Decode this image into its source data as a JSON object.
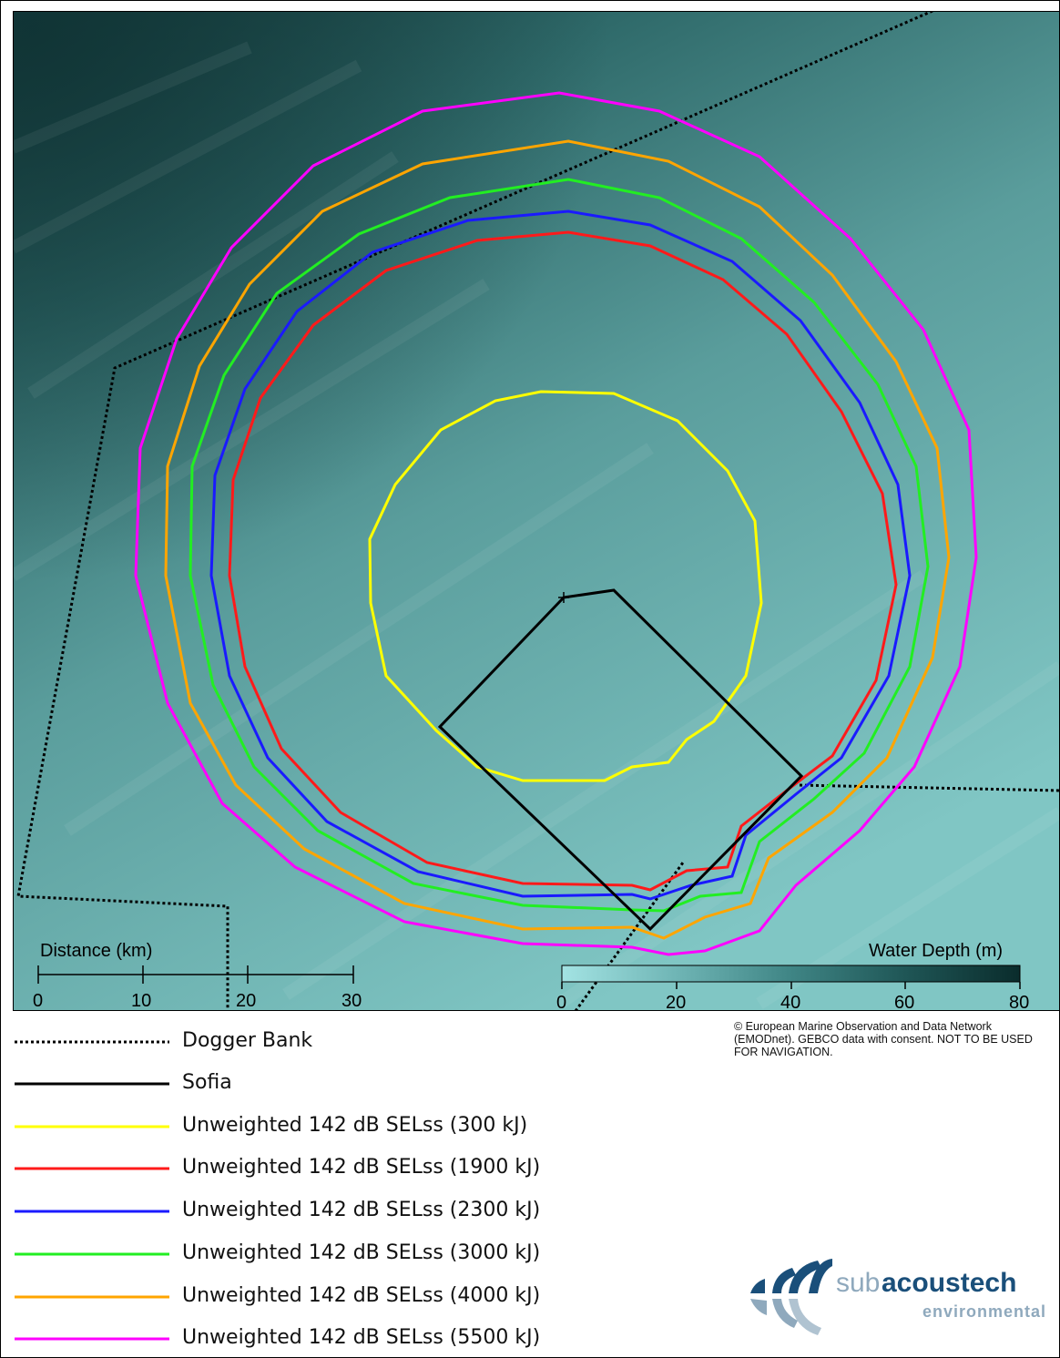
{
  "map": {
    "scale_bar": {
      "title": "Distance (km)",
      "ticks": [
        "0",
        "10",
        "20",
        "30"
      ]
    },
    "depth_bar": {
      "title": "Water Depth (m)",
      "ticks": [
        "0",
        "20",
        "40",
        "60",
        "80"
      ],
      "colors": [
        "#9fe0e0",
        "#6fb8b8",
        "#3f8888",
        "#1f5858",
        "#0b3030"
      ]
    },
    "colors": {
      "sea_light": "#7ec4c2",
      "sea_mid": "#5a9d9c",
      "sea_dark": "#173f40"
    }
  },
  "legend": [
    {
      "label": "Dogger Bank",
      "color": "#000000",
      "style": "dotted"
    },
    {
      "label": "Sofia",
      "color": "#000000",
      "style": "solid"
    },
    {
      "label": "Unweighted 142 dB SELss (300 kJ)",
      "color": "#ffff00",
      "style": "solid"
    },
    {
      "label": "Unweighted 142 dB SELss (1900 kJ)",
      "color": "#ff1a1a",
      "style": "solid"
    },
    {
      "label": "Unweighted 142 dB SELss (2300 kJ)",
      "color": "#1a1aff",
      "style": "solid"
    },
    {
      "label": "Unweighted 142 dB SELss (3000 kJ)",
      "color": "#22ee22",
      "style": "solid"
    },
    {
      "label": "Unweighted 142 dB SELss (4000 kJ)",
      "color": "#ffa500",
      "style": "solid"
    },
    {
      "label": "Unweighted 142 dB SELss (5500 kJ)",
      "color": "#ff00ff",
      "style": "solid"
    }
  ],
  "credit": "© European Marine Observation and Data Network (EMODnet). GEBCO data with consent. NOT TO BE USED FOR NAVIGATION.",
  "logo": {
    "word_light": "sub",
    "word_bold": "acoustech",
    "sub_word": "environmental",
    "brand_color": "#1a4f7a",
    "accent_color": "#8fa9bd"
  }
}
